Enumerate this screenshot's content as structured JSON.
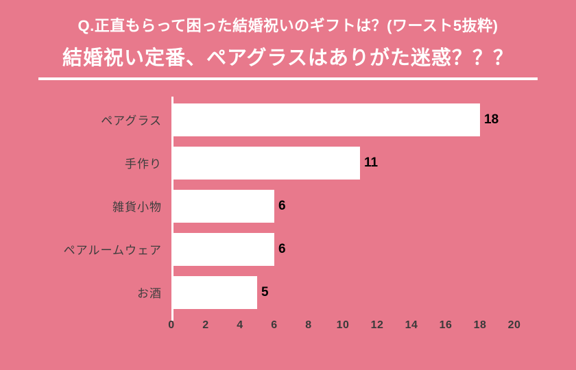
{
  "header": {
    "subtitle": "Q.正直もらって困った結婚祝いのギフトは？(ワースト5抜粋)",
    "title": "結婚祝い定番、ペアグラスはありがた迷惑？？？"
  },
  "colors": {
    "background": "#E8798C",
    "bar": "#FFFFFF",
    "title_text": "#FFFFFF",
    "category_text": "#3D3D3D",
    "value_text": "#000000",
    "axis_text": "#3A3A3A"
  },
  "chart_data": {
    "type": "bar",
    "orientation": "horizontal",
    "title": "結婚祝い定番、ペアグラスはありがた迷惑？？？",
    "subtitle": "Q.正直もらって困った結婚祝いのギフトは？(ワースト5抜粋)",
    "categories": [
      "ペアグラス",
      "手作り",
      "雑貨小物",
      "ペアルームウェア",
      "お酒"
    ],
    "values": [
      18,
      11,
      6,
      6,
      5
    ],
    "xlim": [
      0,
      20
    ],
    "x_ticks": [
      0,
      2,
      4,
      6,
      8,
      10,
      12,
      14,
      16,
      18,
      20
    ],
    "grid": false,
    "legend": false
  }
}
